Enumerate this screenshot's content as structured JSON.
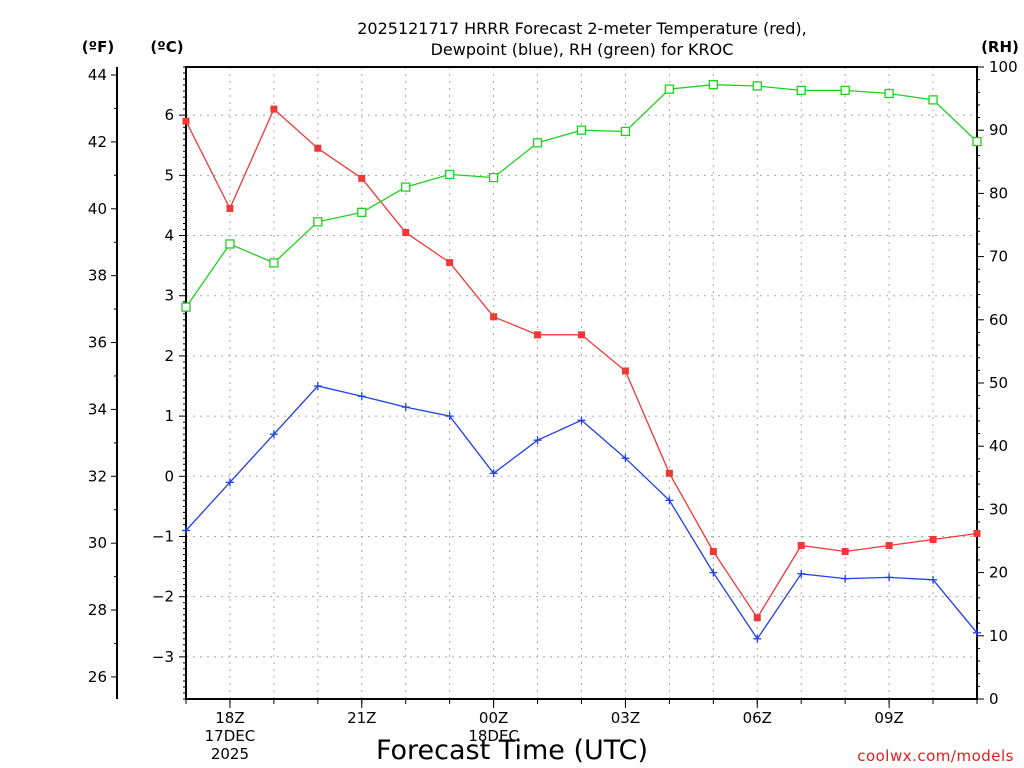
{
  "chart_data": {
    "type": "line",
    "title_line1": "2025121717 HRRR Forecast 2-meter Temperature (red),",
    "title_line2": "Dewpoint (blue), RH (green) for KROC",
    "xlabel": "Forecast Time (UTC)",
    "credit": "coolwx.com/models",
    "left_unit_f": "(ºF)",
    "left_unit_c": "(ºC)",
    "right_unit": "(RH)",
    "x_hours": [
      17,
      18,
      19,
      20,
      21,
      22,
      23,
      24,
      25,
      26,
      27,
      28,
      29,
      30,
      31,
      32,
      33,
      34,
      35
    ],
    "x_ticks": [
      {
        "hour": 18,
        "label": "18Z",
        "sub1": "17DEC",
        "sub2": "2025"
      },
      {
        "hour": 21,
        "label": "21Z",
        "sub1": "",
        "sub2": ""
      },
      {
        "hour": 24,
        "label": "00Z",
        "sub1": "18DEC",
        "sub2": ""
      },
      {
        "hour": 27,
        "label": "03Z",
        "sub1": "",
        "sub2": ""
      },
      {
        "hour": 30,
        "label": "06Z",
        "sub1": "",
        "sub2": ""
      },
      {
        "hour": 33,
        "label": "09Z",
        "sub1": "",
        "sub2": ""
      }
    ],
    "xlim": [
      17,
      35
    ],
    "celsius_lim": [
      -3.7,
      6.8
    ],
    "celsius_ticks": [
      -3,
      -2,
      -1,
      0,
      1,
      2,
      3,
      4,
      5,
      6
    ],
    "fahrenheit_ticks": [
      26,
      28,
      30,
      32,
      34,
      36,
      38,
      40,
      42,
      44
    ],
    "rh_lim": [
      0,
      100
    ],
    "rh_ticks": [
      0,
      10,
      20,
      30,
      40,
      50,
      60,
      70,
      80,
      90,
      100
    ],
    "grid": true,
    "series": [
      {
        "name": "Temperature",
        "axis": "celsius",
        "color": "#f03838",
        "marker": "filled-square",
        "values": [
          5.9,
          4.45,
          6.1,
          5.45,
          4.95,
          4.05,
          3.55,
          2.65,
          2.35,
          2.35,
          1.75,
          0.05,
          -1.25,
          -2.35,
          -1.15,
          -1.25,
          -1.15,
          -1.05,
          -0.95
        ]
      },
      {
        "name": "Dewpoint",
        "axis": "celsius",
        "color": "#2040e8",
        "marker": "plus",
        "values": [
          -0.9,
          -0.1,
          0.7,
          1.5,
          1.33,
          1.15,
          1.0,
          0.05,
          0.6,
          0.93,
          0.3,
          -0.4,
          -1.6,
          -2.7,
          -1.62,
          -1.7,
          -1.68,
          -1.72,
          -2.6
        ]
      },
      {
        "name": "RH",
        "axis": "rh",
        "color": "#20d020",
        "marker": "open-square",
        "values": [
          62,
          72,
          69,
          75.5,
          77,
          81,
          83,
          82.5,
          88,
          90,
          89.8,
          96.5,
          97.2,
          97,
          96.3,
          96.3,
          95.8,
          94.8,
          88.2
        ]
      }
    ]
  }
}
